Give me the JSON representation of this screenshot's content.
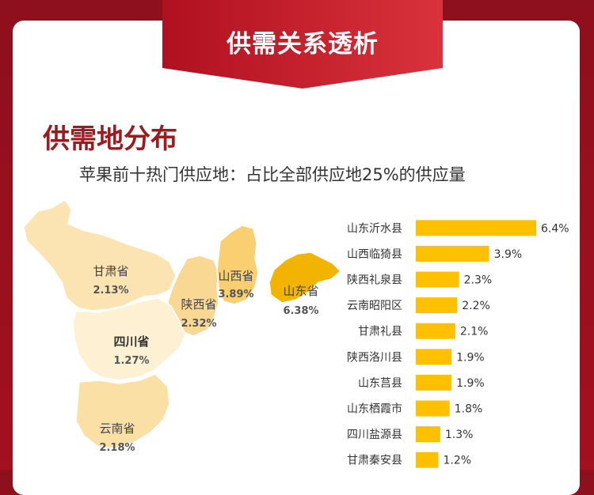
{
  "banner": {
    "title": "供需关系透析"
  },
  "section": {
    "title": "供需地分布",
    "subtitle": "苹果前十热门供应地：占比全部供应地25%的供应量"
  },
  "map": {
    "provinces": [
      {
        "name": "甘肃省",
        "value": "2.13%",
        "color": "#fbe3b2"
      },
      {
        "name": "山西省",
        "value": "3.89%",
        "color": "#f9cf72"
      },
      {
        "name": "陕西省",
        "value": "2.32%",
        "color": "#f9d893"
      },
      {
        "name": "山东省",
        "value": "6.38%",
        "color": "#f3b400"
      },
      {
        "name": "四川省",
        "value": "1.27%",
        "color": "#fdf0d3"
      },
      {
        "name": "云南省",
        "value": "2.18%",
        "color": "#fbe0a6"
      }
    ]
  },
  "chart_data": {
    "type": "bar",
    "orientation": "horizontal",
    "categories": [
      "山东沂水县",
      "山西临猗县",
      "陕西礼泉县",
      "云南昭阳区",
      "甘肃礼县",
      "陕西洛川县",
      "山东莒县",
      "山东栖霞市",
      "四川盐源县",
      "甘肃秦安县"
    ],
    "values": [
      6.4,
      3.9,
      2.3,
      2.2,
      2.1,
      1.9,
      1.9,
      1.8,
      1.3,
      1.2
    ],
    "value_labels": [
      "6.4%",
      "3.9%",
      "2.3%",
      "2.2%",
      "2.1%",
      "1.9%",
      "1.9%",
      "1.8%",
      "1.3%",
      "1.2%"
    ],
    "xlim": [
      0,
      6.4
    ],
    "bar_color": "#ffc000",
    "grid": false,
    "title": "",
    "xlabel": "",
    "ylabel": ""
  }
}
